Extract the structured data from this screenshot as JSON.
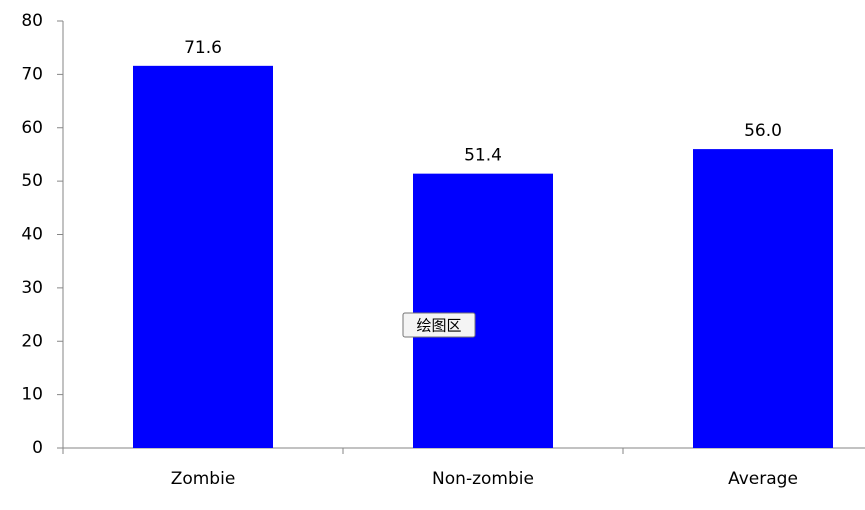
{
  "chart_data": {
    "type": "bar",
    "categories": [
      "Zombie",
      "Non-zombie",
      "Average"
    ],
    "values": [
      71.6,
      51.4,
      56.0
    ],
    "value_labels": [
      "71.6",
      "51.4",
      "56.0"
    ],
    "color": "#0000ff",
    "ylim": [
      0,
      80
    ],
    "yticks": [
      0,
      10,
      20,
      30,
      40,
      50,
      60,
      70,
      80
    ],
    "grid": false,
    "annotation": "绘图区"
  }
}
